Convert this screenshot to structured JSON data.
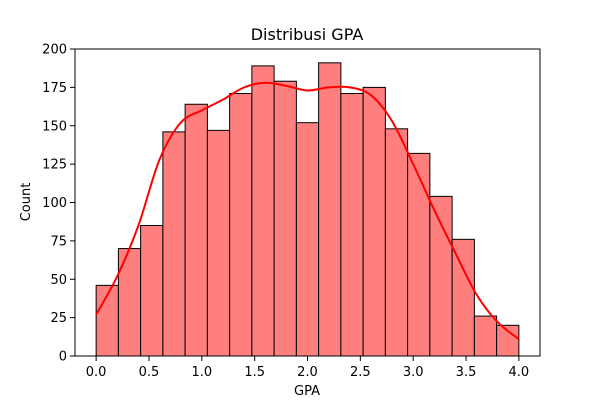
{
  "chart_data": {
    "type": "bar",
    "title": "Distribusi GPA",
    "xlabel": "GPA",
    "ylabel": "Count",
    "xlim": [
      -0.2,
      4.2
    ],
    "ylim": [
      0,
      200
    ],
    "xticks": [
      0.0,
      0.5,
      1.0,
      1.5,
      2.0,
      2.5,
      3.0,
      3.5,
      4.0
    ],
    "xtick_labels": [
      "0.0",
      "0.5",
      "1.0",
      "1.5",
      "2.0",
      "2.5",
      "3.0",
      "3.5",
      "4.0"
    ],
    "yticks": [
      0,
      25,
      50,
      75,
      100,
      125,
      150,
      175,
      200
    ],
    "ytick_labels": [
      "0",
      "25",
      "50",
      "75",
      "100",
      "125",
      "150",
      "175",
      "200"
    ],
    "grid": false,
    "bar_color": "#ff7f7f",
    "bar_edge_color": "#000000",
    "bins": {
      "start": 0.0,
      "end": 4.0,
      "counts": [
        46,
        70,
        85,
        146,
        164,
        147,
        171,
        189,
        179,
        152,
        191,
        171,
        175,
        148,
        132,
        104,
        76,
        26,
        20
      ]
    },
    "kde": {
      "color": "#ff0000",
      "x": [
        0.0,
        0.2,
        0.4,
        0.6,
        0.8,
        1.0,
        1.2,
        1.4,
        1.6,
        1.8,
        2.0,
        2.2,
        2.4,
        2.6,
        2.8,
        3.0,
        3.2,
        3.4,
        3.6,
        3.8,
        4.0
      ],
      "y": [
        27,
        52,
        85,
        128,
        152,
        160,
        167,
        175,
        178,
        176,
        173,
        175,
        175,
        170,
        153,
        125,
        95,
        67,
        40,
        22,
        11
      ]
    }
  }
}
